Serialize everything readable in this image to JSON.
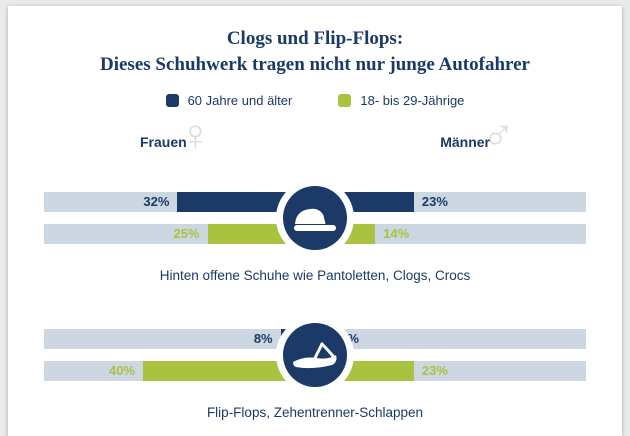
{
  "page": {
    "title_line1": "Clogs und Flip-Flops:",
    "title_line2": "Dieses Schuhwerk tragen nicht nur junge Autofahrer"
  },
  "legend": [
    {
      "label": "60 Jahre und älter",
      "color": "#1b3a67"
    },
    {
      "label": "18- bis 29-Jährige",
      "color": "#a9c23f"
    }
  ],
  "columns": {
    "left": "Frauen",
    "right": "Männer"
  },
  "icons": {
    "female": "♀",
    "male": "♂"
  },
  "colors": {
    "navy": "#1b3a67",
    "green": "#a9c23f",
    "bar_track": "#ccd7e2",
    "card": "#ffffff",
    "page_background": "#e9eaea",
    "gender_glyph": "#dcdddd"
  },
  "chart_data": {
    "type": "bar",
    "orientation": "mirrored-horizontal",
    "unit": "%",
    "columns": [
      "Frauen",
      "Männer"
    ],
    "groups": [
      {
        "caption": "Hinten offene Schuhe wie Pantoletten, Clogs, Crocs",
        "icon": "clog-shoe-icon",
        "series": [
          {
            "name": "60 Jahre und älter",
            "color": "#1b3a67",
            "values": {
              "frauen": 32,
              "maenner": 23
            }
          },
          {
            "name": "18- bis 29-Jährige",
            "color": "#a9c23f",
            "values": {
              "frauen": 25,
              "maenner": 14
            }
          }
        ]
      },
      {
        "caption": "Flip-Flops, Zehentrenner-Schlappen",
        "icon": "flip-flop-icon",
        "series": [
          {
            "name": "60 Jahre und älter",
            "color": "#1b3a67",
            "values": {
              "frauen": 8,
              "maenner": 4
            }
          },
          {
            "name": "18- bis 29-Jährige",
            "color": "#a9c23f",
            "values": {
              "frauen": 40,
              "maenner": 23
            }
          }
        ]
      }
    ]
  }
}
